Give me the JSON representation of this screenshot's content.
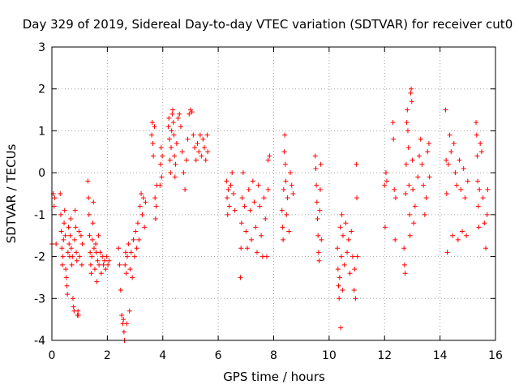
{
  "chart_data": {
    "type": "scatter",
    "title": "Day 329 of 2019, Sidereal Day-to-day VTEC variation (SDTVAR) for receiver cut0",
    "xlabel": "GPS time / hours",
    "ylabel": "SDTVAR / TECUs",
    "xlim": [
      0,
      16
    ],
    "ylim": [
      -4,
      3
    ],
    "xticks": [
      0,
      2,
      4,
      6,
      8,
      10,
      12,
      14,
      16
    ],
    "yticks": [
      -4,
      -3,
      -2,
      -1,
      0,
      1,
      2,
      3
    ],
    "grid": true,
    "marker": "+",
    "marker_color": "#ff0000",
    "series": [
      {
        "name": "SDTVAR",
        "points": [
          [
            0.0,
            -1.7
          ],
          [
            0.05,
            -0.5
          ],
          [
            0.08,
            -0.8
          ],
          [
            0.1,
            -0.6
          ],
          [
            0.15,
            -1.7
          ],
          [
            0.3,
            -0.5
          ],
          [
            0.32,
            -1.0
          ],
          [
            0.34,
            -1.4
          ],
          [
            0.36,
            -1.8
          ],
          [
            0.38,
            -2.2
          ],
          [
            0.4,
            -2.0
          ],
          [
            0.42,
            -1.6
          ],
          [
            0.44,
            -1.2
          ],
          [
            0.46,
            -0.9
          ],
          [
            0.48,
            -1.5
          ],
          [
            0.5,
            -2.3
          ],
          [
            0.52,
            -2.5
          ],
          [
            0.54,
            -2.7
          ],
          [
            0.56,
            -2.9
          ],
          [
            0.58,
            -1.9
          ],
          [
            0.6,
            -1.3
          ],
          [
            0.62,
            -1.7
          ],
          [
            0.64,
            -2.0
          ],
          [
            0.66,
            -1.5
          ],
          [
            0.68,
            -1.1
          ],
          [
            0.7,
            -1.8
          ],
          [
            0.72,
            -2.2
          ],
          [
            0.74,
            -2.0
          ],
          [
            0.76,
            -3.0
          ],
          [
            0.78,
            -3.2
          ],
          [
            0.8,
            -3.3
          ],
          [
            0.82,
            -1.6
          ],
          [
            0.84,
            -0.9
          ],
          [
            0.86,
            -1.3
          ],
          [
            0.88,
            -1.9
          ],
          [
            0.9,
            -2.1
          ],
          [
            0.92,
            -3.4
          ],
          [
            0.94,
            -3.3
          ],
          [
            0.96,
            -3.4
          ],
          [
            0.98,
            -1.4
          ],
          [
            1.0,
            -2.0
          ],
          [
            1.05,
            -1.5
          ],
          [
            1.08,
            -2.2
          ],
          [
            1.1,
            -1.7
          ],
          [
            1.3,
            -0.2
          ],
          [
            1.32,
            -0.6
          ],
          [
            1.34,
            -1.0
          ],
          [
            1.36,
            -1.5
          ],
          [
            1.38,
            -1.9
          ],
          [
            1.4,
            -2.2
          ],
          [
            1.42,
            -2.4
          ],
          [
            1.44,
            -2.0
          ],
          [
            1.46,
            -1.6
          ],
          [
            1.48,
            -1.2
          ],
          [
            1.5,
            -0.7
          ],
          [
            1.52,
            -1.8
          ],
          [
            1.55,
            -2.3
          ],
          [
            1.58,
            -1.7
          ],
          [
            1.6,
            -1.9
          ],
          [
            1.62,
            -2.6
          ],
          [
            1.65,
            -2.1
          ],
          [
            1.68,
            -1.5
          ],
          [
            1.7,
            -2.2
          ],
          [
            1.74,
            -1.9
          ],
          [
            1.78,
            -2.4
          ],
          [
            1.82,
            -2.0
          ],
          [
            1.86,
            -2.2
          ],
          [
            1.9,
            -2.1
          ],
          [
            1.94,
            -2.3
          ],
          [
            1.98,
            -2.0
          ],
          [
            2.02,
            -2.2
          ],
          [
            2.06,
            -2.1
          ],
          [
            2.4,
            -1.8
          ],
          [
            2.44,
            -2.2
          ],
          [
            2.48,
            -2.8
          ],
          [
            2.52,
            -3.4
          ],
          [
            2.56,
            -3.6
          ],
          [
            2.58,
            -3.5
          ],
          [
            2.6,
            -3.8
          ],
          [
            2.62,
            -4.0
          ],
          [
            2.64,
            -2.2
          ],
          [
            2.66,
            -1.9
          ],
          [
            2.68,
            -2.4
          ],
          [
            2.7,
            -3.6
          ],
          [
            2.72,
            -2.0
          ],
          [
            2.76,
            -1.7
          ],
          [
            2.8,
            -3.3
          ],
          [
            2.82,
            -2.3
          ],
          [
            2.86,
            -1.9
          ],
          [
            2.9,
            -2.5
          ],
          [
            2.94,
            -1.6
          ],
          [
            2.98,
            -2.0
          ],
          [
            3.02,
            -1.4
          ],
          [
            3.06,
            -1.8
          ],
          [
            3.1,
            -1.2
          ],
          [
            3.14,
            -1.6
          ],
          [
            3.18,
            -0.8
          ],
          [
            3.22,
            -0.5
          ],
          [
            3.26,
            -1.0
          ],
          [
            3.3,
            -0.6
          ],
          [
            3.34,
            -1.3
          ],
          [
            3.38,
            -0.7
          ],
          [
            3.6,
            0.9
          ],
          [
            3.62,
            1.2
          ],
          [
            3.64,
            0.7
          ],
          [
            3.66,
            0.4
          ],
          [
            3.7,
            1.1
          ],
          [
            3.72,
            -0.6
          ],
          [
            3.74,
            -1.1
          ],
          [
            3.76,
            -0.8
          ],
          [
            3.78,
            -0.3
          ],
          [
            3.9,
            -0.3
          ],
          [
            3.92,
            0.2
          ],
          [
            3.94,
            0.6
          ],
          [
            3.96,
            -0.1
          ],
          [
            3.98,
            0.4
          ],
          [
            4.2,
            1.1
          ],
          [
            4.22,
            1.3
          ],
          [
            4.24,
            0.8
          ],
          [
            4.26,
            0.3
          ],
          [
            4.28,
            0.0
          ],
          [
            4.3,
            0.6
          ],
          [
            4.32,
            1.0
          ],
          [
            4.34,
            1.4
          ],
          [
            4.36,
            1.5
          ],
          [
            4.38,
            1.2
          ],
          [
            4.4,
            0.9
          ],
          [
            4.42,
            0.4
          ],
          [
            4.44,
            -0.1
          ],
          [
            4.46,
            0.2
          ],
          [
            4.5,
            0.7
          ],
          [
            4.55,
            1.3
          ],
          [
            4.6,
            1.4
          ],
          [
            4.65,
            1.1
          ],
          [
            4.7,
            0.5
          ],
          [
            4.75,
            0.0
          ],
          [
            4.8,
            -0.4
          ],
          [
            4.85,
            0.3
          ],
          [
            4.9,
            0.8
          ],
          [
            4.95,
            1.4
          ],
          [
            5.0,
            1.5
          ],
          [
            5.05,
            1.45
          ],
          [
            5.1,
            0.9
          ],
          [
            5.15,
            0.6
          ],
          [
            5.2,
            0.3
          ],
          [
            5.25,
            0.7
          ],
          [
            5.3,
            0.5
          ],
          [
            5.35,
            0.9
          ],
          [
            5.4,
            0.4
          ],
          [
            5.45,
            0.8
          ],
          [
            5.5,
            0.6
          ],
          [
            5.55,
            0.3
          ],
          [
            5.6,
            0.9
          ],
          [
            5.62,
            0.5
          ],
          [
            6.3,
            -0.2
          ],
          [
            6.32,
            -0.6
          ],
          [
            6.34,
            -1.0
          ],
          [
            6.36,
            -0.4
          ],
          [
            6.4,
            -0.8
          ],
          [
            6.45,
            -0.3
          ],
          [
            6.5,
            0.0
          ],
          [
            6.55,
            -0.5
          ],
          [
            6.6,
            -0.9
          ],
          [
            6.8,
            -2.5
          ],
          [
            6.82,
            -1.8
          ],
          [
            6.84,
            -1.2
          ],
          [
            6.86,
            -0.6
          ],
          [
            6.9,
            0.0
          ],
          [
            6.95,
            -0.8
          ],
          [
            7.0,
            -1.4
          ],
          [
            7.05,
            -1.8
          ],
          [
            7.1,
            -0.4
          ],
          [
            7.15,
            -0.9
          ],
          [
            7.2,
            -1.6
          ],
          [
            7.25,
            -0.2
          ],
          [
            7.3,
            -0.7
          ],
          [
            7.35,
            -1.3
          ],
          [
            7.4,
            -1.9
          ],
          [
            7.45,
            -0.3
          ],
          [
            7.5,
            -0.8
          ],
          [
            7.55,
            -1.5
          ],
          [
            7.6,
            -2.0
          ],
          [
            7.65,
            -0.6
          ],
          [
            7.7,
            -1.1
          ],
          [
            7.75,
            -2.0
          ],
          [
            7.8,
            -0.4
          ],
          [
            7.8,
            0.3
          ],
          [
            7.85,
            0.4
          ],
          [
            8.3,
            -0.9
          ],
          [
            8.32,
            -1.3
          ],
          [
            8.34,
            -1.6
          ],
          [
            8.36,
            -0.4
          ],
          [
            8.38,
            0.5
          ],
          [
            8.4,
            0.9
          ],
          [
            8.42,
            0.2
          ],
          [
            8.44,
            -0.2
          ],
          [
            8.46,
            -1.0
          ],
          [
            8.5,
            -0.6
          ],
          [
            8.55,
            -1.4
          ],
          [
            8.6,
            0.0
          ],
          [
            8.65,
            -0.3
          ],
          [
            8.7,
            -0.5
          ],
          [
            9.5,
            0.4
          ],
          [
            9.52,
            0.1
          ],
          [
            9.54,
            -0.3
          ],
          [
            9.56,
            -0.7
          ],
          [
            9.58,
            -1.1
          ],
          [
            9.6,
            -1.5
          ],
          [
            9.62,
            -1.9
          ],
          [
            9.64,
            -2.1
          ],
          [
            9.66,
            -0.9
          ],
          [
            9.68,
            -0.4
          ],
          [
            9.7,
            0.2
          ],
          [
            9.72,
            -1.6
          ],
          [
            10.3,
            -1.8
          ],
          [
            10.32,
            -2.3
          ],
          [
            10.34,
            -2.7
          ],
          [
            10.36,
            -3.0
          ],
          [
            10.38,
            -2.5
          ],
          [
            10.4,
            -1.3
          ],
          [
            10.42,
            -3.7
          ],
          [
            10.44,
            -2.0
          ],
          [
            10.46,
            -1.0
          ],
          [
            10.48,
            -2.8
          ],
          [
            10.5,
            -1.5
          ],
          [
            10.55,
            -2.2
          ],
          [
            10.6,
            -1.2
          ],
          [
            10.65,
            -1.9
          ],
          [
            10.7,
            -1.6
          ],
          [
            10.75,
            -2.4
          ],
          [
            10.8,
            -1.4
          ],
          [
            10.85,
            -2.0
          ],
          [
            10.9,
            -2.8
          ],
          [
            10.92,
            -2.3
          ],
          [
            10.95,
            -3.0
          ],
          [
            10.98,
            0.2
          ],
          [
            11.0,
            -0.6
          ],
          [
            11.02,
            -2.0
          ],
          [
            12.0,
            -0.3
          ],
          [
            12.02,
            -1.3
          ],
          [
            12.05,
            0.0
          ],
          [
            12.08,
            -0.2
          ],
          [
            12.3,
            1.2
          ],
          [
            12.32,
            0.8
          ],
          [
            12.35,
            -0.4
          ],
          [
            12.38,
            -1.6
          ],
          [
            12.4,
            -0.6
          ],
          [
            12.7,
            -1.8
          ],
          [
            12.72,
            -2.2
          ],
          [
            12.74,
            -2.4
          ],
          [
            12.76,
            -0.5
          ],
          [
            12.78,
            0.2
          ],
          [
            12.8,
            1.2
          ],
          [
            12.82,
            1.5
          ],
          [
            12.84,
            1.0
          ],
          [
            12.86,
            0.6
          ],
          [
            12.88,
            -0.3
          ],
          [
            12.9,
            -1.0
          ],
          [
            12.92,
            -1.5
          ],
          [
            12.94,
            1.9
          ],
          [
            12.96,
            2.0
          ],
          [
            12.98,
            1.7
          ],
          [
            13.0,
            0.3
          ],
          [
            13.02,
            -0.4
          ],
          [
            13.05,
            -1.2
          ],
          [
            13.1,
            -0.8
          ],
          [
            13.2,
            -0.1
          ],
          [
            13.25,
            0.4
          ],
          [
            13.3,
            0.8
          ],
          [
            13.35,
            0.2
          ],
          [
            13.4,
            -0.3
          ],
          [
            13.45,
            -1.0
          ],
          [
            13.5,
            -0.6
          ],
          [
            13.55,
            0.5
          ],
          [
            13.6,
            0.7
          ],
          [
            13.62,
            -0.1
          ],
          [
            14.2,
            1.5
          ],
          [
            14.22,
            0.3
          ],
          [
            14.24,
            -0.5
          ],
          [
            14.26,
            -1.9
          ],
          [
            14.3,
            0.2
          ],
          [
            14.35,
            0.9
          ],
          [
            14.4,
            0.5
          ],
          [
            14.45,
            -1.5
          ],
          [
            14.5,
            0.7
          ],
          [
            14.55,
            0.0
          ],
          [
            14.6,
            -0.3
          ],
          [
            14.65,
            -1.6
          ],
          [
            14.7,
            0.3
          ],
          [
            14.75,
            -0.4
          ],
          [
            14.8,
            -1.4
          ],
          [
            14.85,
            0.1
          ],
          [
            14.9,
            -0.6
          ],
          [
            14.95,
            -1.5
          ],
          [
            15.0,
            -0.2
          ],
          [
            15.3,
            1.2
          ],
          [
            15.32,
            0.9
          ],
          [
            15.34,
            0.4
          ],
          [
            15.36,
            -0.2
          ],
          [
            15.38,
            -0.8
          ],
          [
            15.4,
            -1.3
          ],
          [
            15.42,
            -0.4
          ],
          [
            15.45,
            0.7
          ],
          [
            15.5,
            0.5
          ],
          [
            15.55,
            -0.6
          ],
          [
            15.6,
            -1.2
          ],
          [
            15.65,
            -1.8
          ],
          [
            15.7,
            -1.0
          ],
          [
            15.72,
            -0.4
          ]
        ]
      }
    ]
  }
}
